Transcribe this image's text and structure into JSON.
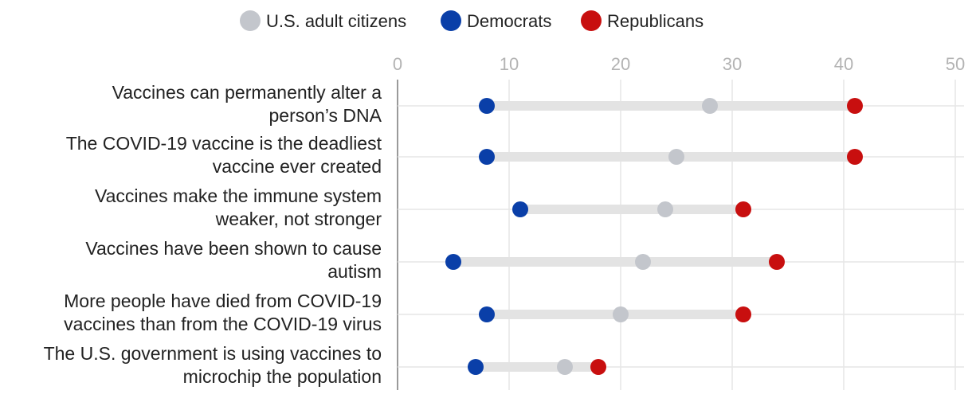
{
  "chart_data": {
    "type": "dumbbell",
    "title": "",
    "xlabel": "",
    "ylabel": "",
    "xlim": [
      0,
      50
    ],
    "xticks": [
      "0",
      "10",
      "20",
      "30",
      "40",
      "50"
    ],
    "grid": true,
    "legend_position": "top",
    "series": [
      {
        "key": "adults",
        "name": "U.S. adult citizens",
        "color": "#c3c6cc"
      },
      {
        "key": "dem",
        "name": "Democrats",
        "color": "#0a3fa8"
      },
      {
        "key": "rep",
        "name": "Republicans",
        "color": "#c80f0f"
      }
    ],
    "rows": [
      {
        "lines": [
          "Vaccines can permanently alter a",
          "person’s DNA"
        ],
        "dem": 8,
        "adults": 28,
        "rep": 41
      },
      {
        "lines": [
          "The COVID-19 vaccine is the deadliest",
          "vaccine ever created"
        ],
        "dem": 8,
        "adults": 25,
        "rep": 41
      },
      {
        "lines": [
          "Vaccines make the immune system",
          "weaker, not stronger"
        ],
        "dem": 11,
        "adults": 24,
        "rep": 31
      },
      {
        "lines": [
          "Vaccines have been shown to cause",
          "autism"
        ],
        "dem": 5,
        "adults": 22,
        "rep": 34
      },
      {
        "lines": [
          "More people have died from COVID-19",
          "vaccines than from the COVID-19 virus"
        ],
        "dem": 8,
        "adults": 20,
        "rep": 31
      },
      {
        "lines": [
          "The U.S. government is using vaccines to",
          "microchip the population"
        ],
        "dem": 7,
        "adults": 15,
        "rep": 18
      }
    ]
  }
}
